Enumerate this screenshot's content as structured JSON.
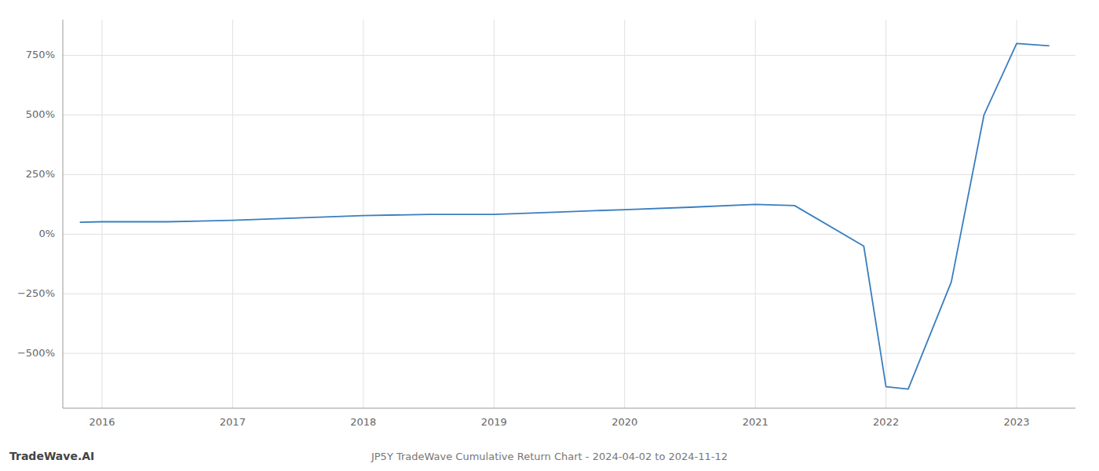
{
  "chart_data": {
    "type": "line",
    "title": "JP5Y TradeWave Cumulative Return Chart - 2024-04-02 to 2024-11-12",
    "annotations": [
      "TradeWave.AI"
    ],
    "x": [
      2015.83,
      2016.0,
      2016.5,
      2017.0,
      2017.5,
      2018.0,
      2018.5,
      2019.0,
      2019.5,
      2020.0,
      2020.5,
      2021.0,
      2021.3,
      2021.83,
      2022.0,
      2022.17,
      2022.5,
      2022.75,
      2023.0,
      2023.25
    ],
    "values": [
      50,
      52,
      52,
      58,
      68,
      78,
      83,
      83,
      93,
      103,
      113,
      125,
      120,
      -50,
      -640,
      -650,
      -200,
      500,
      800,
      790
    ],
    "color": "#3a7ebf",
    "xlim": [
      2015.7,
      2023.45
    ],
    "ylim": [
      -730,
      900
    ],
    "xticks": [
      2016,
      2017,
      2018,
      2019,
      2020,
      2021,
      2022,
      2023
    ],
    "yticks": [
      {
        "value": -500,
        "label": "−500%"
      },
      {
        "value": -250,
        "label": "−250%"
      },
      {
        "value": 0,
        "label": "0%"
      },
      {
        "value": 250,
        "label": "250%"
      },
      {
        "value": 500,
        "label": "500%"
      },
      {
        "value": 750,
        "label": "750%"
      }
    ],
    "grid": true
  }
}
